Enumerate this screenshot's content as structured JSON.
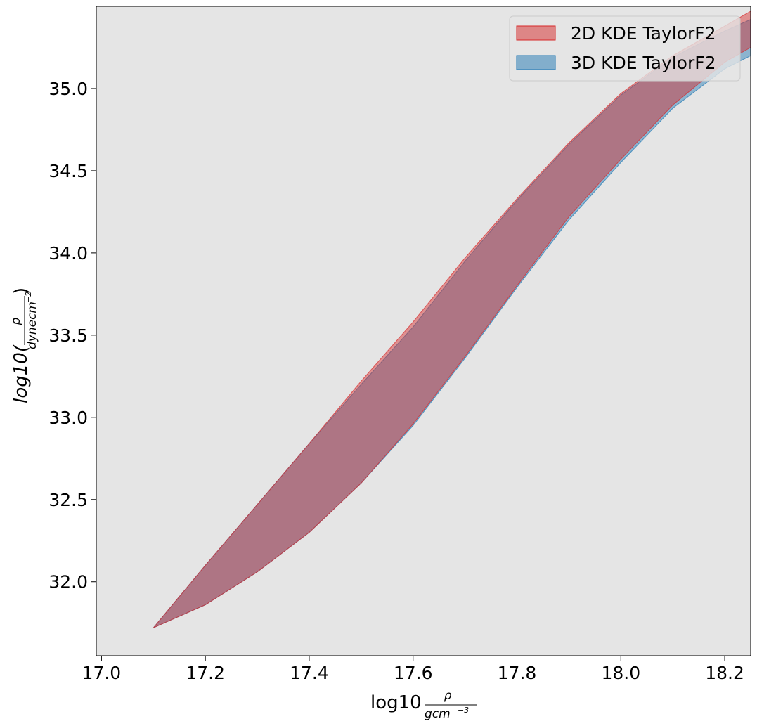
{
  "chart_data": {
    "type": "area",
    "title": "",
    "xlabel": {
      "main": "log10",
      "numerator": "ρ",
      "denominator_base": "gcm",
      "denominator_exp": "−3"
    },
    "ylabel": {
      "prefix": "log10(",
      "numerator": "p",
      "denominator_base": "dynecm",
      "denominator_exp": "−2",
      "suffix": ")"
    },
    "xlim": [
      16.99,
      18.25
    ],
    "ylim": [
      31.55,
      35.5
    ],
    "x_ticks": [
      "17.0",
      "17.2",
      "17.4",
      "17.6",
      "17.8",
      "18.0",
      "18.2"
    ],
    "x_tick_values": [
      17.0,
      17.2,
      17.4,
      17.6,
      17.8,
      18.0,
      18.2
    ],
    "y_ticks": [
      "32.0",
      "32.5",
      "33.0",
      "33.5",
      "34.0",
      "34.5",
      "35.0"
    ],
    "y_tick_values": [
      32.0,
      32.5,
      33.0,
      33.5,
      34.0,
      34.5,
      35.0
    ],
    "grid": false,
    "background": "#e5e5e5",
    "legend_position": "top-right",
    "series": [
      {
        "name": "2D KDE TaylorF2",
        "color": "#d62728",
        "x": [
          17.1,
          17.2,
          17.3,
          17.4,
          17.5,
          17.6,
          17.7,
          17.8,
          17.9,
          18.0,
          18.1,
          18.2,
          18.25
        ],
        "upper": [
          31.72,
          32.1,
          32.47,
          32.84,
          33.22,
          33.58,
          33.97,
          34.33,
          34.67,
          34.97,
          35.2,
          35.38,
          35.47
        ],
        "lower": [
          31.72,
          31.86,
          32.06,
          32.3,
          32.6,
          32.96,
          33.37,
          33.8,
          34.22,
          34.57,
          34.9,
          35.16,
          35.25
        ]
      },
      {
        "name": "3D KDE TaylorF2",
        "color": "#1f77b4",
        "x": [
          17.1,
          17.2,
          17.3,
          17.4,
          17.5,
          17.6,
          17.7,
          17.8,
          17.9,
          18.0,
          18.1,
          18.2,
          18.25
        ],
        "upper": [
          31.72,
          32.1,
          32.47,
          32.84,
          33.2,
          33.55,
          33.95,
          34.32,
          34.66,
          34.96,
          35.19,
          35.35,
          35.42
        ],
        "lower": [
          31.72,
          31.86,
          32.06,
          32.3,
          32.6,
          32.95,
          33.36,
          33.79,
          34.2,
          34.55,
          34.88,
          35.12,
          35.2
        ]
      }
    ]
  }
}
